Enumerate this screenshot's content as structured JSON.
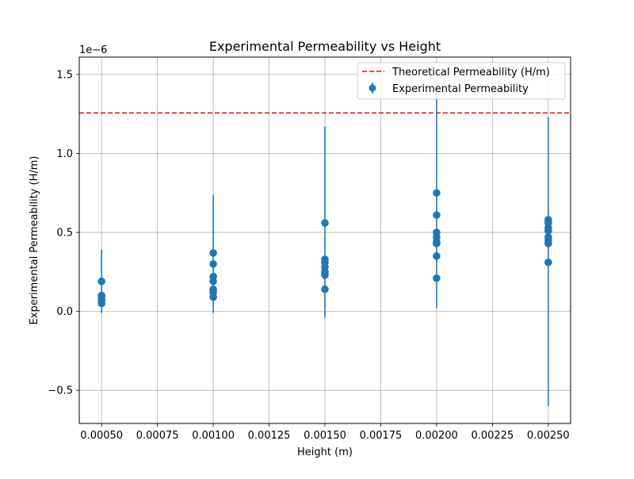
{
  "chart_data": {
    "type": "scatter",
    "title": "Experimental Permeability vs Height",
    "xlabel": "Height (m)",
    "ylabel": "Experimental Permeability (H/m)",
    "y_scale_note": "1e−6",
    "xlim": [
      0.0004,
      0.0026
    ],
    "ylim": [
      -0.71,
      1.61
    ],
    "y_unit_factor": 1e-06,
    "grid": true,
    "legend_position": "top-right",
    "x_ticks": [
      {
        "value": 0.0005,
        "label": "0.00050"
      },
      {
        "value": 0.00075,
        "label": "0.00075"
      },
      {
        "value": 0.001,
        "label": "0.00100"
      },
      {
        "value": 0.00125,
        "label": "0.00125"
      },
      {
        "value": 0.0015,
        "label": "0.00150"
      },
      {
        "value": 0.00175,
        "label": "0.00175"
      },
      {
        "value": 0.002,
        "label": "0.00200"
      },
      {
        "value": 0.00225,
        "label": "0.00225"
      },
      {
        "value": 0.0025,
        "label": "0.00250"
      }
    ],
    "y_ticks": [
      {
        "value": -0.5,
        "label": "−0.5"
      },
      {
        "value": 0.0,
        "label": "0.0"
      },
      {
        "value": 0.5,
        "label": "0.5"
      },
      {
        "value": 1.0,
        "label": "1.0"
      },
      {
        "value": 1.5,
        "label": "1.5"
      }
    ],
    "reference_line": {
      "name": "Theoretical Permeability (H/m)",
      "y": 1.2566,
      "color": "#ff0000",
      "style": "dashed"
    },
    "series": [
      {
        "name": "Experimental Permeability",
        "color": "#1f77b4",
        "points": [
          {
            "x": 0.0005,
            "y": 0.19
          },
          {
            "x": 0.0005,
            "y": 0.1
          },
          {
            "x": 0.0005,
            "y": 0.09
          },
          {
            "x": 0.0005,
            "y": 0.07
          },
          {
            "x": 0.0005,
            "y": 0.05
          },
          {
            "x": 0.001,
            "y": 0.37
          },
          {
            "x": 0.001,
            "y": 0.3
          },
          {
            "x": 0.001,
            "y": 0.22
          },
          {
            "x": 0.001,
            "y": 0.19
          },
          {
            "x": 0.001,
            "y": 0.14
          },
          {
            "x": 0.001,
            "y": 0.12
          },
          {
            "x": 0.001,
            "y": 0.09
          },
          {
            "x": 0.0015,
            "y": 0.56
          },
          {
            "x": 0.0015,
            "y": 0.33
          },
          {
            "x": 0.0015,
            "y": 0.31
          },
          {
            "x": 0.0015,
            "y": 0.28
          },
          {
            "x": 0.0015,
            "y": 0.25
          },
          {
            "x": 0.0015,
            "y": 0.23
          },
          {
            "x": 0.0015,
            "y": 0.14
          },
          {
            "x": 0.002,
            "y": 0.75
          },
          {
            "x": 0.002,
            "y": 0.61
          },
          {
            "x": 0.002,
            "y": 0.5
          },
          {
            "x": 0.002,
            "y": 0.47
          },
          {
            "x": 0.002,
            "y": 0.44
          },
          {
            "x": 0.002,
            "y": 0.43
          },
          {
            "x": 0.002,
            "y": 0.35
          },
          {
            "x": 0.002,
            "y": 0.21
          },
          {
            "x": 0.0025,
            "y": 0.58
          },
          {
            "x": 0.0025,
            "y": 0.56
          },
          {
            "x": 0.0025,
            "y": 0.53
          },
          {
            "x": 0.0025,
            "y": 0.51
          },
          {
            "x": 0.0025,
            "y": 0.47
          },
          {
            "x": 0.0025,
            "y": 0.45
          },
          {
            "x": 0.0025,
            "y": 0.43
          },
          {
            "x": 0.0025,
            "y": 0.31
          }
        ],
        "error_bars": [
          {
            "x": 0.0005,
            "low": -0.01,
            "high": 0.39
          },
          {
            "x": 0.001,
            "low": -0.01,
            "high": 0.74
          },
          {
            "x": 0.0015,
            "low": -0.04,
            "high": 1.17
          },
          {
            "x": 0.002,
            "low": 0.02,
            "high": 1.45
          },
          {
            "x": 0.0025,
            "low": -0.6,
            "high": 1.23
          }
        ]
      }
    ]
  }
}
